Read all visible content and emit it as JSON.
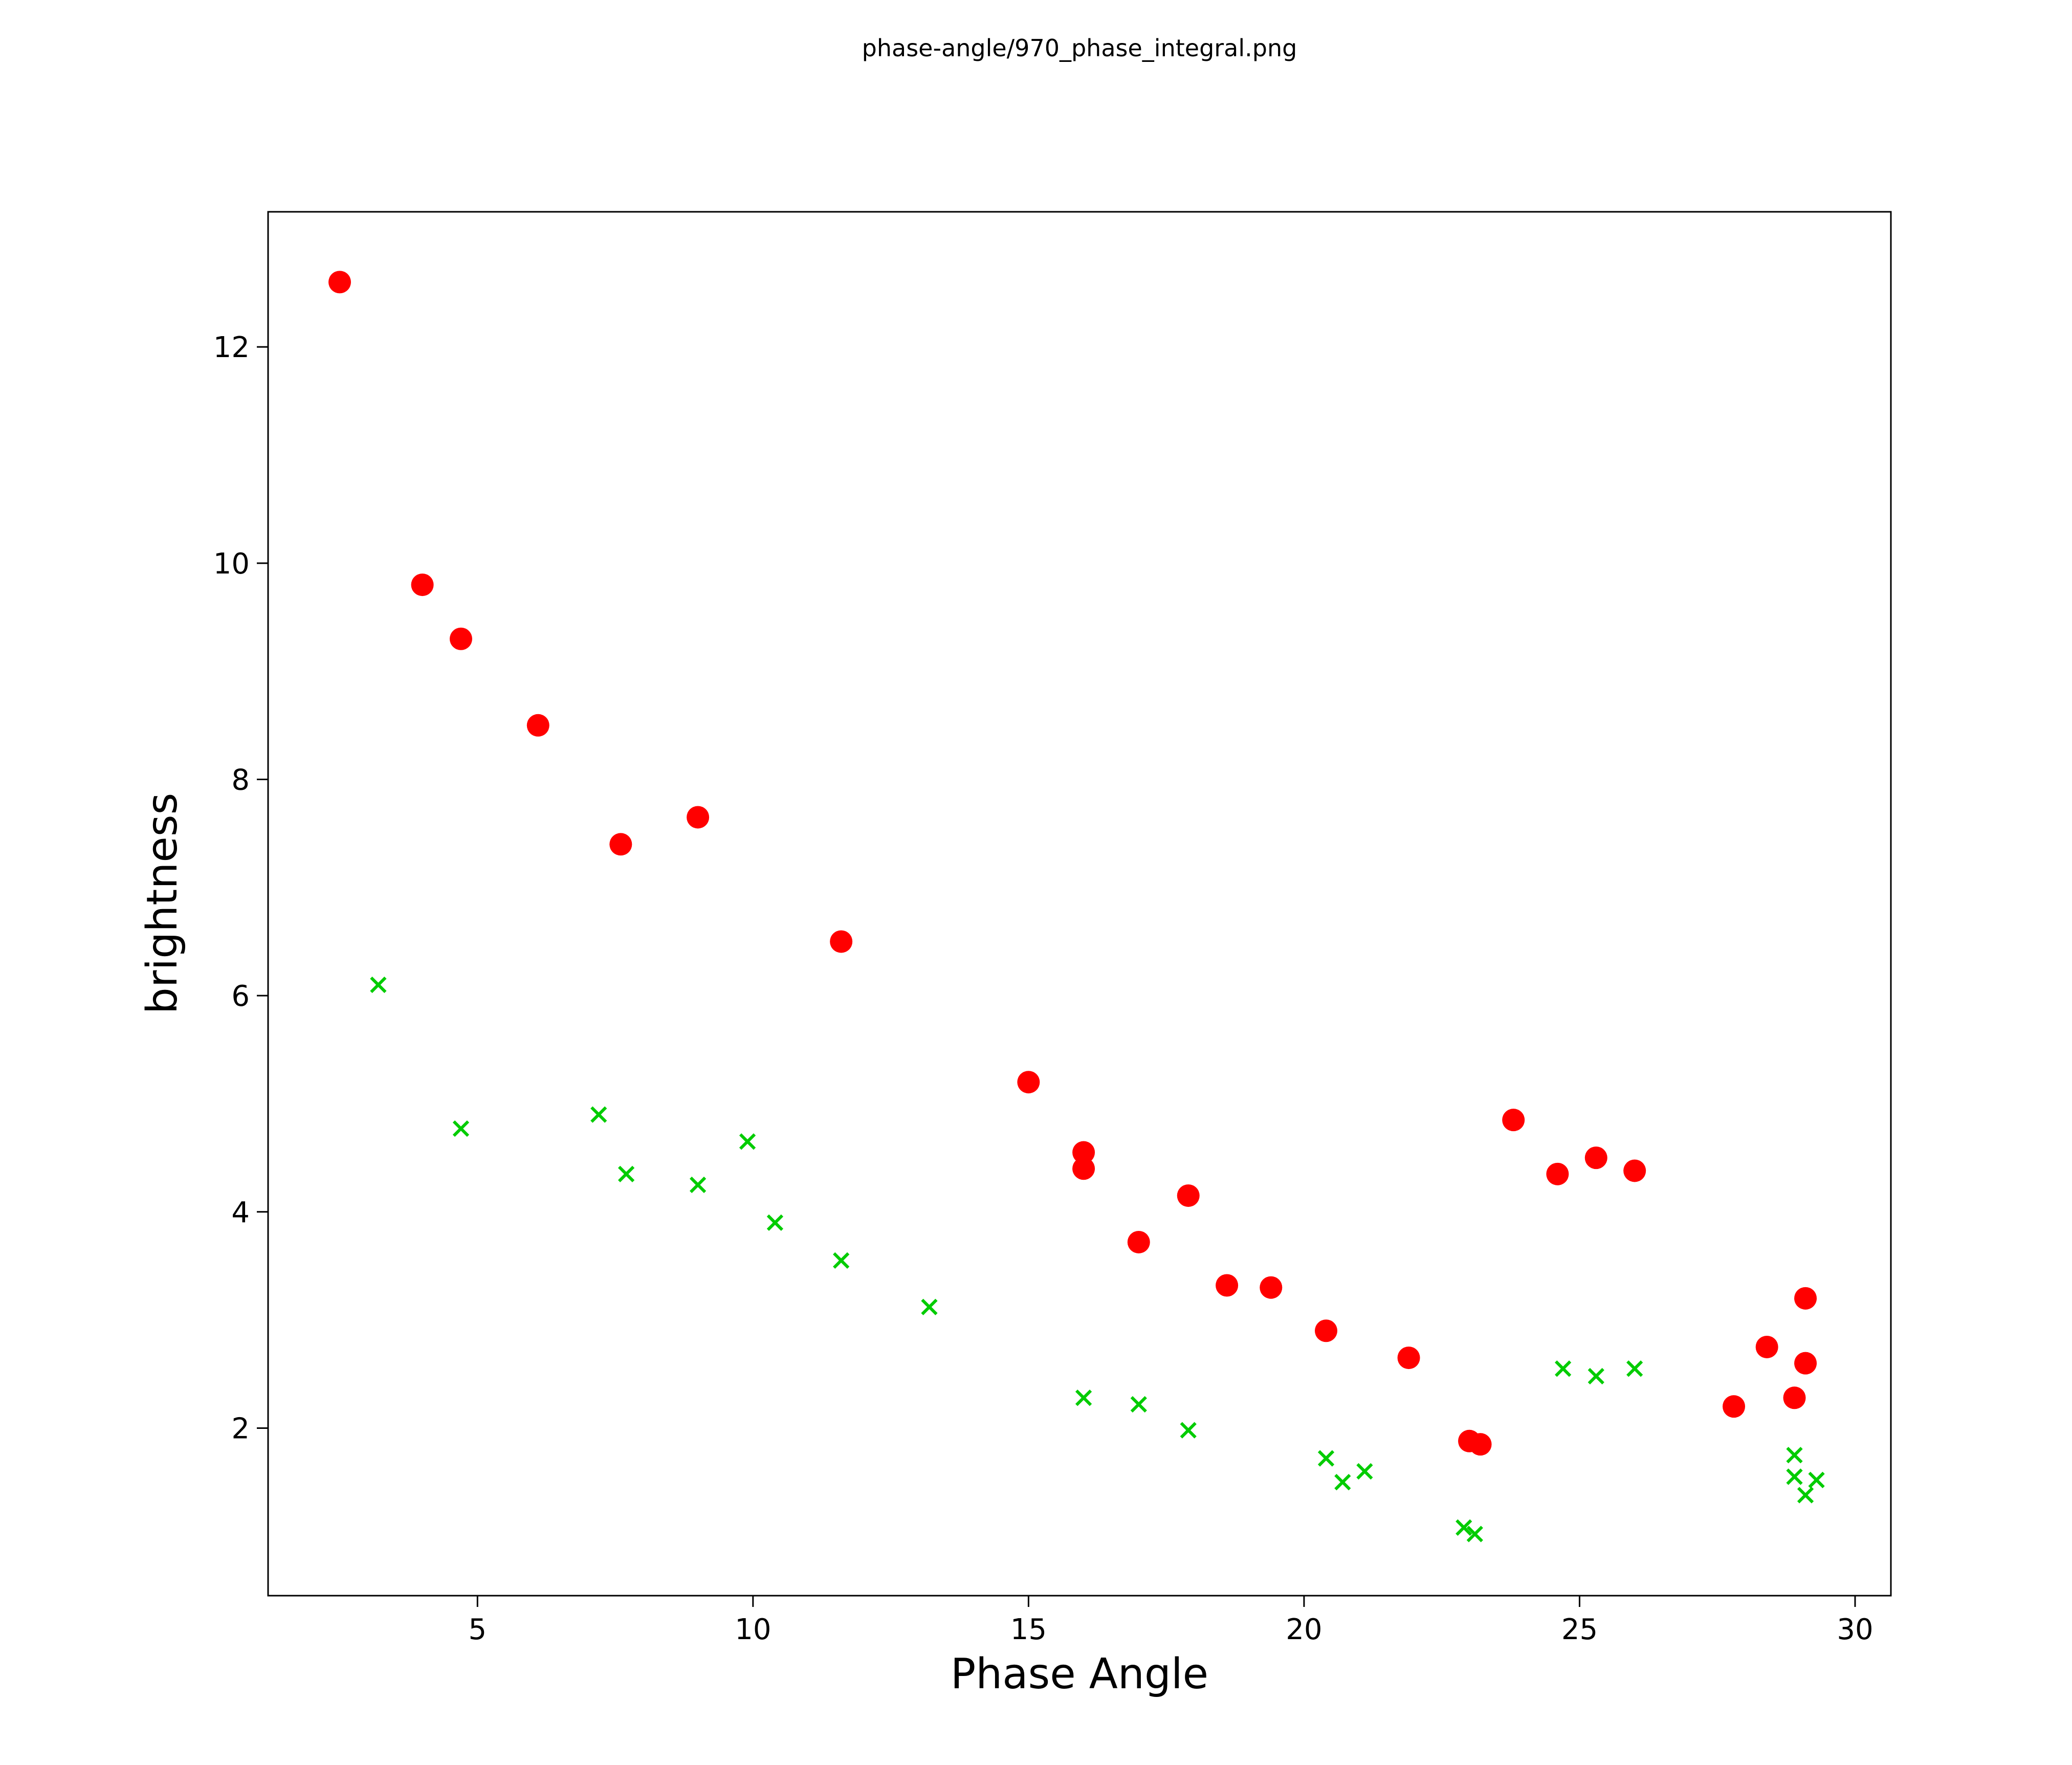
{
  "chart_data": {
    "type": "scatter",
    "title": "phase-angle/970_phase_integral.png",
    "xlabel": "Phase Angle",
    "ylabel": "brightness",
    "xlim": [
      1.2,
      30.65
    ],
    "ylim": [
      0.45,
      13.25
    ],
    "xticks": [
      5,
      10,
      15,
      20,
      25,
      30
    ],
    "yticks": [
      2,
      4,
      6,
      8,
      10,
      12
    ],
    "grid": false,
    "legend": "none",
    "series": [
      {
        "name": "red-circles",
        "marker": "circle",
        "color": "#ff0000",
        "points": [
          [
            2.5,
            12.6
          ],
          [
            4.0,
            9.8
          ],
          [
            4.7,
            9.3
          ],
          [
            6.1,
            8.5
          ],
          [
            7.6,
            7.4
          ],
          [
            9.0,
            7.65
          ],
          [
            11.6,
            6.5
          ],
          [
            15.0,
            5.2
          ],
          [
            16.0,
            4.55
          ],
          [
            16.0,
            4.4
          ],
          [
            17.0,
            3.72
          ],
          [
            17.9,
            4.15
          ],
          [
            18.6,
            3.32
          ],
          [
            19.4,
            3.3
          ],
          [
            20.4,
            2.9
          ],
          [
            21.9,
            2.65
          ],
          [
            23.0,
            1.88
          ],
          [
            23.2,
            1.85
          ],
          [
            23.8,
            4.85
          ],
          [
            24.6,
            4.35
          ],
          [
            25.3,
            4.5
          ],
          [
            26.0,
            4.38
          ],
          [
            27.8,
            2.2
          ],
          [
            28.4,
            2.75
          ],
          [
            28.9,
            2.28
          ],
          [
            29.1,
            3.2
          ],
          [
            29.1,
            2.6
          ]
        ]
      },
      {
        "name": "green-crosses",
        "marker": "x",
        "color": "#00cc00",
        "points": [
          [
            3.2,
            6.1
          ],
          [
            4.7,
            4.77
          ],
          [
            7.2,
            4.9
          ],
          [
            7.7,
            4.35
          ],
          [
            9.0,
            4.25
          ],
          [
            9.9,
            4.65
          ],
          [
            10.4,
            3.9
          ],
          [
            11.6,
            3.55
          ],
          [
            13.2,
            3.12
          ],
          [
            16.0,
            2.28
          ],
          [
            17.0,
            2.22
          ],
          [
            17.9,
            1.98
          ],
          [
            20.4,
            1.72
          ],
          [
            20.7,
            1.5
          ],
          [
            21.1,
            1.6
          ],
          [
            22.9,
            1.08
          ],
          [
            23.1,
            1.02
          ],
          [
            24.7,
            2.55
          ],
          [
            25.3,
            2.48
          ],
          [
            26.0,
            2.55
          ],
          [
            28.9,
            1.75
          ],
          [
            28.9,
            1.55
          ],
          [
            29.1,
            1.38
          ],
          [
            29.3,
            1.52
          ]
        ]
      }
    ]
  }
}
